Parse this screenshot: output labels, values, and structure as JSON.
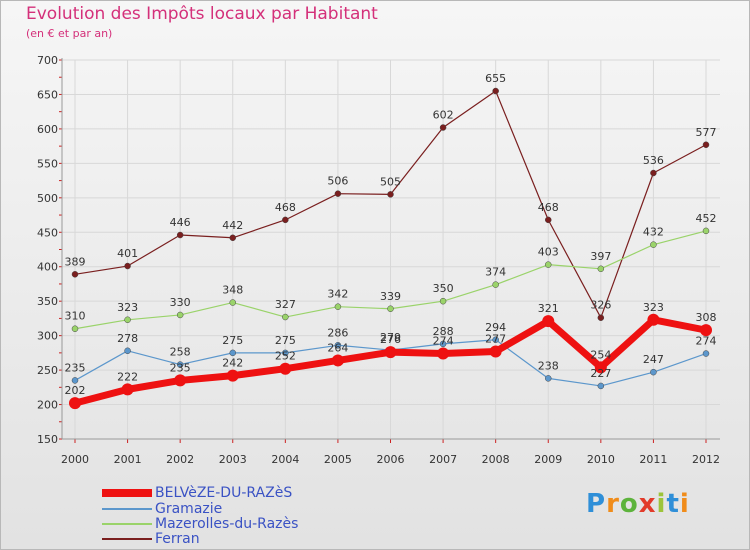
{
  "title": "Evolution des Impôts locaux par Habitant",
  "subtitle": "(en € et par an)",
  "logo": {
    "letters": [
      "P",
      "r",
      "o",
      "x",
      "i",
      "t",
      "i"
    ],
    "colors": [
      "#2f8fd8",
      "#f08c1a",
      "#5db33c",
      "#e23b2a",
      "#9dc43a",
      "#2f8fd8",
      "#f08c1a"
    ]
  },
  "chart_data": {
    "type": "line",
    "title": "Evolution des Impôts locaux par Habitant",
    "subtitle": "(en € et par an)",
    "xlabel": "",
    "ylabel": "",
    "categories": [
      "2000",
      "2001",
      "2002",
      "2003",
      "2004",
      "2005",
      "2006",
      "2007",
      "2008",
      "2009",
      "2010",
      "2011",
      "2012"
    ],
    "ylim": [
      150,
      700
    ],
    "yticks": [
      150,
      200,
      250,
      300,
      350,
      400,
      450,
      500,
      550,
      600,
      650,
      700
    ],
    "grid": true,
    "legend": "bottom-left",
    "series": [
      {
        "name": "Ferran",
        "color": "#7a1f1f",
        "width": 1.2,
        "values": [
          389,
          401,
          446,
          442,
          468,
          506,
          505,
          602,
          655,
          468,
          326,
          536,
          577
        ]
      },
      {
        "name": "Mazerolles-du-Razès",
        "color": "#9ad36a",
        "width": 1.2,
        "values": [
          310,
          323,
          330,
          348,
          327,
          342,
          339,
          350,
          374,
          403,
          397,
          432,
          452
        ]
      },
      {
        "name": "Gramazie",
        "color": "#5c97cc",
        "width": 1.2,
        "values": [
          235,
          278,
          258,
          275,
          275,
          286,
          279,
          288,
          294,
          238,
          227,
          247,
          274
        ]
      },
      {
        "name": "BELVèZE-DU-RAZèS",
        "color": "#ee1111",
        "width": 7,
        "values": [
          202,
          222,
          235,
          242,
          252,
          264,
          276,
          274,
          277,
          321,
          254,
          323,
          308
        ]
      }
    ],
    "legend_order": [
      "BELVèZE-DU-RAZèS",
      "Gramazie",
      "Mazerolles-du-Razès",
      "Ferran"
    ]
  }
}
